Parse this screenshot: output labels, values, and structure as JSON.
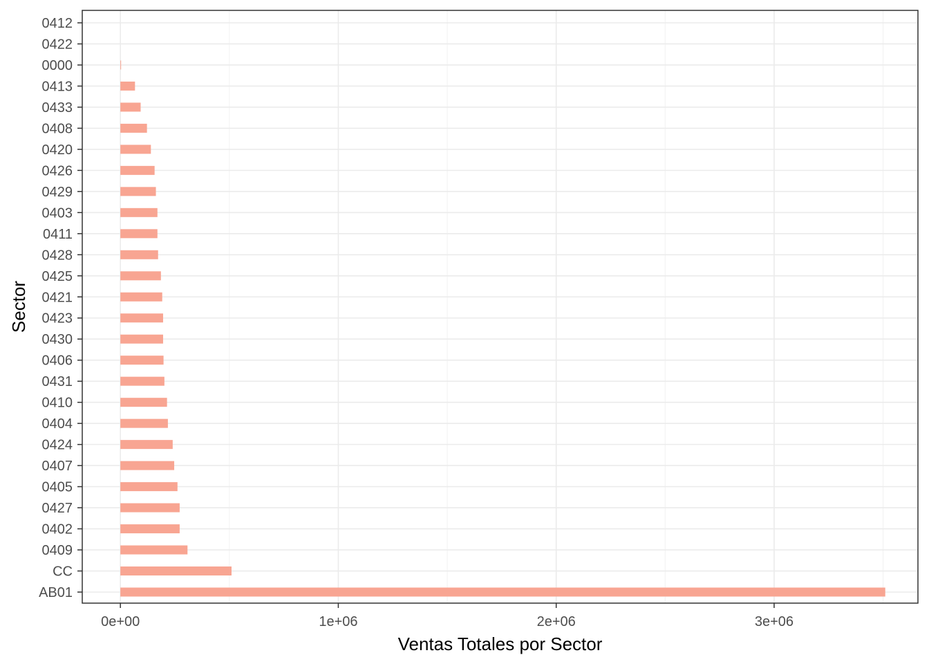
{
  "chart_data": {
    "type": "bar",
    "orientation": "horizontal",
    "title": "",
    "xlabel": "Ventas Totales por Sector",
    "ylabel": "Sector",
    "xlim": [
      -175000,
      3660000
    ],
    "x_ticks": [
      0,
      1000000,
      2000000,
      3000000
    ],
    "x_tick_labels": [
      "0e+00",
      "1e+06",
      "2e+06",
      "3e+06"
    ],
    "grid": true,
    "legend": "none",
    "bar_color": "#F8A592",
    "categories": [
      "AB01",
      "CC",
      "0409",
      "0402",
      "0427",
      "0405",
      "0407",
      "0424",
      "0404",
      "0410",
      "0431",
      "0406",
      "0430",
      "0423",
      "0421",
      "0425",
      "0428",
      "0411",
      "0403",
      "0429",
      "0426",
      "0420",
      "0408",
      "0433",
      "0413",
      "0000",
      "0422",
      "0412"
    ],
    "values": [
      3510000,
      510000,
      308000,
      272000,
      272000,
      262000,
      247000,
      240000,
      218000,
      214000,
      202000,
      198000,
      196000,
      196000,
      192000,
      186000,
      173000,
      170000,
      170000,
      163000,
      157000,
      140000,
      122000,
      93000,
      67000,
      3000,
      0,
      0
    ]
  }
}
